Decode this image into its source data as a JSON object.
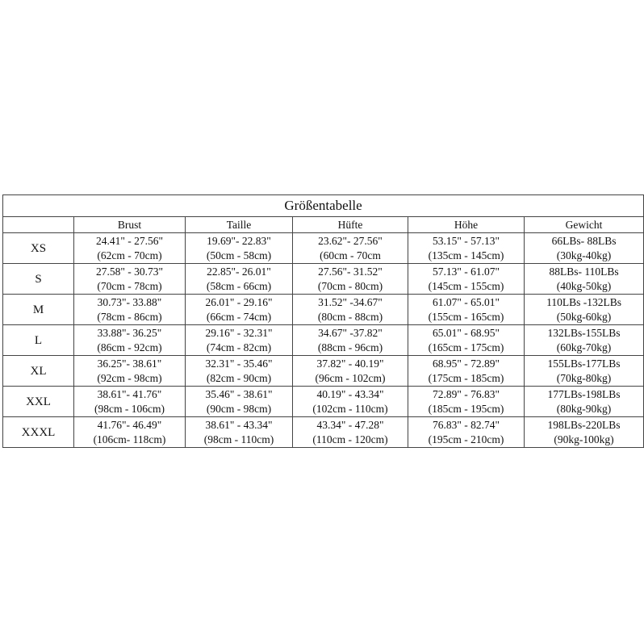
{
  "title": "Größentabelle",
  "headers": [
    "",
    "Brust",
    "Taille",
    "Hüfte",
    "Höhe",
    "Gewicht"
  ],
  "rows": [
    {
      "size": "XS",
      "brust": [
        "24.41\" - 27.56\"",
        "(62cm - 70cm)"
      ],
      "taille": [
        "19.69\"- 22.83\"",
        "(50cm - 58cm)"
      ],
      "huefte": [
        "23.62\"- 27.56\"",
        "(60cm - 70cm"
      ],
      "hoehe": [
        "53.15\" - 57.13\"",
        "(135cm - 145cm)"
      ],
      "gewicht": [
        "66LBs- 88LBs",
        "(30kg-40kg)"
      ]
    },
    {
      "size": "S",
      "brust": [
        "27.58\" - 30.73\"",
        "(70cm - 78cm)"
      ],
      "taille": [
        "22.85\"- 26.01\"",
        "(58cm - 66cm)"
      ],
      "huefte": [
        "27.56\"- 31.52\"",
        "(70cm - 80cm)"
      ],
      "hoehe": [
        "57.13\" - 61.07\"",
        "(145cm - 155cm)"
      ],
      "gewicht": [
        "88LBs- 110LBs",
        "(40kg-50kg)"
      ]
    },
    {
      "size": "M",
      "brust": [
        "30.73\"- 33.88\"",
        "(78cm - 86cm)"
      ],
      "taille": [
        "26.01\" - 29.16\"",
        "(66cm - 74cm)"
      ],
      "huefte": [
        "31.52\" -34.67\"",
        "(80cm - 88cm)"
      ],
      "hoehe": [
        "61.07\" - 65.01\"",
        "(155cm - 165cm)"
      ],
      "gewicht": [
        "110LBs -132LBs",
        "(50kg-60kg)"
      ]
    },
    {
      "size": "L",
      "brust": [
        "33.88\"- 36.25\"",
        "(86cm - 92cm)"
      ],
      "taille": [
        "29.16\" - 32.31\"",
        "(74cm - 82cm)"
      ],
      "huefte": [
        "34.67\" -37.82\"",
        "(88cm - 96cm)"
      ],
      "hoehe": [
        "65.01\" - 68.95\"",
        "(165cm - 175cm)"
      ],
      "gewicht": [
        "132LBs-155LBs",
        "(60kg-70kg)"
      ]
    },
    {
      "size": "XL",
      "brust": [
        "36.25\"- 38.61\"",
        "(92cm - 98cm)"
      ],
      "taille": [
        "32.31\" - 35.46\"",
        "(82cm - 90cm)"
      ],
      "huefte": [
        "37.82\" - 40.19\"",
        "(96cm - 102cm)"
      ],
      "hoehe": [
        "68.95\" - 72.89\"",
        "(175cm - 185cm)"
      ],
      "gewicht": [
        "155LBs-177LBs",
        "(70kg-80kg)"
      ]
    },
    {
      "size": "XXL",
      "brust": [
        "38.61\"- 41.76\"",
        "(98cm - 106cm)"
      ],
      "taille": [
        "35.46\" - 38.61\"",
        "(90cm - 98cm)"
      ],
      "huefte": [
        "40.19\" - 43.34\"",
        "(102cm - 110cm)"
      ],
      "hoehe": [
        "72.89\" - 76.83\"",
        "(185cm - 195cm)"
      ],
      "gewicht": [
        "177LBs-198LBs",
        "(80kg-90kg)"
      ]
    },
    {
      "size": "XXXL",
      "brust": [
        "41.76\"- 46.49\"",
        "(106cm- 118cm)"
      ],
      "taille": [
        "38.61\" - 43.34\"",
        "(98cm - 110cm)"
      ],
      "huefte": [
        "43.34\" - 47.28\"",
        "(110cm - 120cm)"
      ],
      "hoehe": [
        "76.83\" - 82.74\"",
        "(195cm - 210cm)"
      ],
      "gewicht": [
        "198LBs-220LBs",
        "(90kg-100kg)"
      ]
    }
  ]
}
